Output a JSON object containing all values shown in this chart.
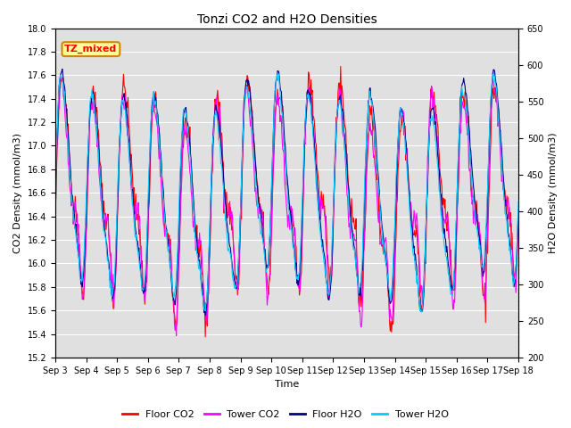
{
  "title": "Tonzi CO2 and H2O Densities",
  "xlabel": "Time",
  "ylabel_left": "CO2 Density (mmol/m3)",
  "ylabel_right": "H2O Density (mmol/m3)",
  "annotation": "TZ_mixed",
  "ylim_left": [
    15.2,
    18.0
  ],
  "ylim_right": [
    200,
    650
  ],
  "yticks_left": [
    15.2,
    15.4,
    15.6,
    15.8,
    16.0,
    16.2,
    16.4,
    16.6,
    16.8,
    17.0,
    17.2,
    17.4,
    17.6,
    17.8,
    18.0
  ],
  "yticks_right": [
    200,
    250,
    300,
    350,
    400,
    450,
    500,
    550,
    600,
    650
  ],
  "xtick_labels": [
    "Sep 3",
    "Sep 4",
    "Sep 5",
    "Sep 6",
    "Sep 7",
    "Sep 8",
    "Sep 9",
    "Sep 10",
    "Sep 11",
    "Sep 12",
    "Sep 13",
    "Sep 14",
    "Sep 15",
    "Sep 16",
    "Sep 17",
    "Sep 18"
  ],
  "colors": {
    "floor_co2": "#FF0000",
    "tower_co2": "#FF00FF",
    "floor_h2o": "#00008B",
    "tower_h2o": "#00CCFF"
  },
  "legend": [
    "Floor CO2",
    "Tower CO2",
    "Floor H2O",
    "Tower H2O"
  ],
  "background_color": "#E0E0E0",
  "annotation_bg": "#FFFF99",
  "annotation_border": "#CC8800",
  "grid_color": "#FFFFFF",
  "days": 15,
  "seed": 42
}
